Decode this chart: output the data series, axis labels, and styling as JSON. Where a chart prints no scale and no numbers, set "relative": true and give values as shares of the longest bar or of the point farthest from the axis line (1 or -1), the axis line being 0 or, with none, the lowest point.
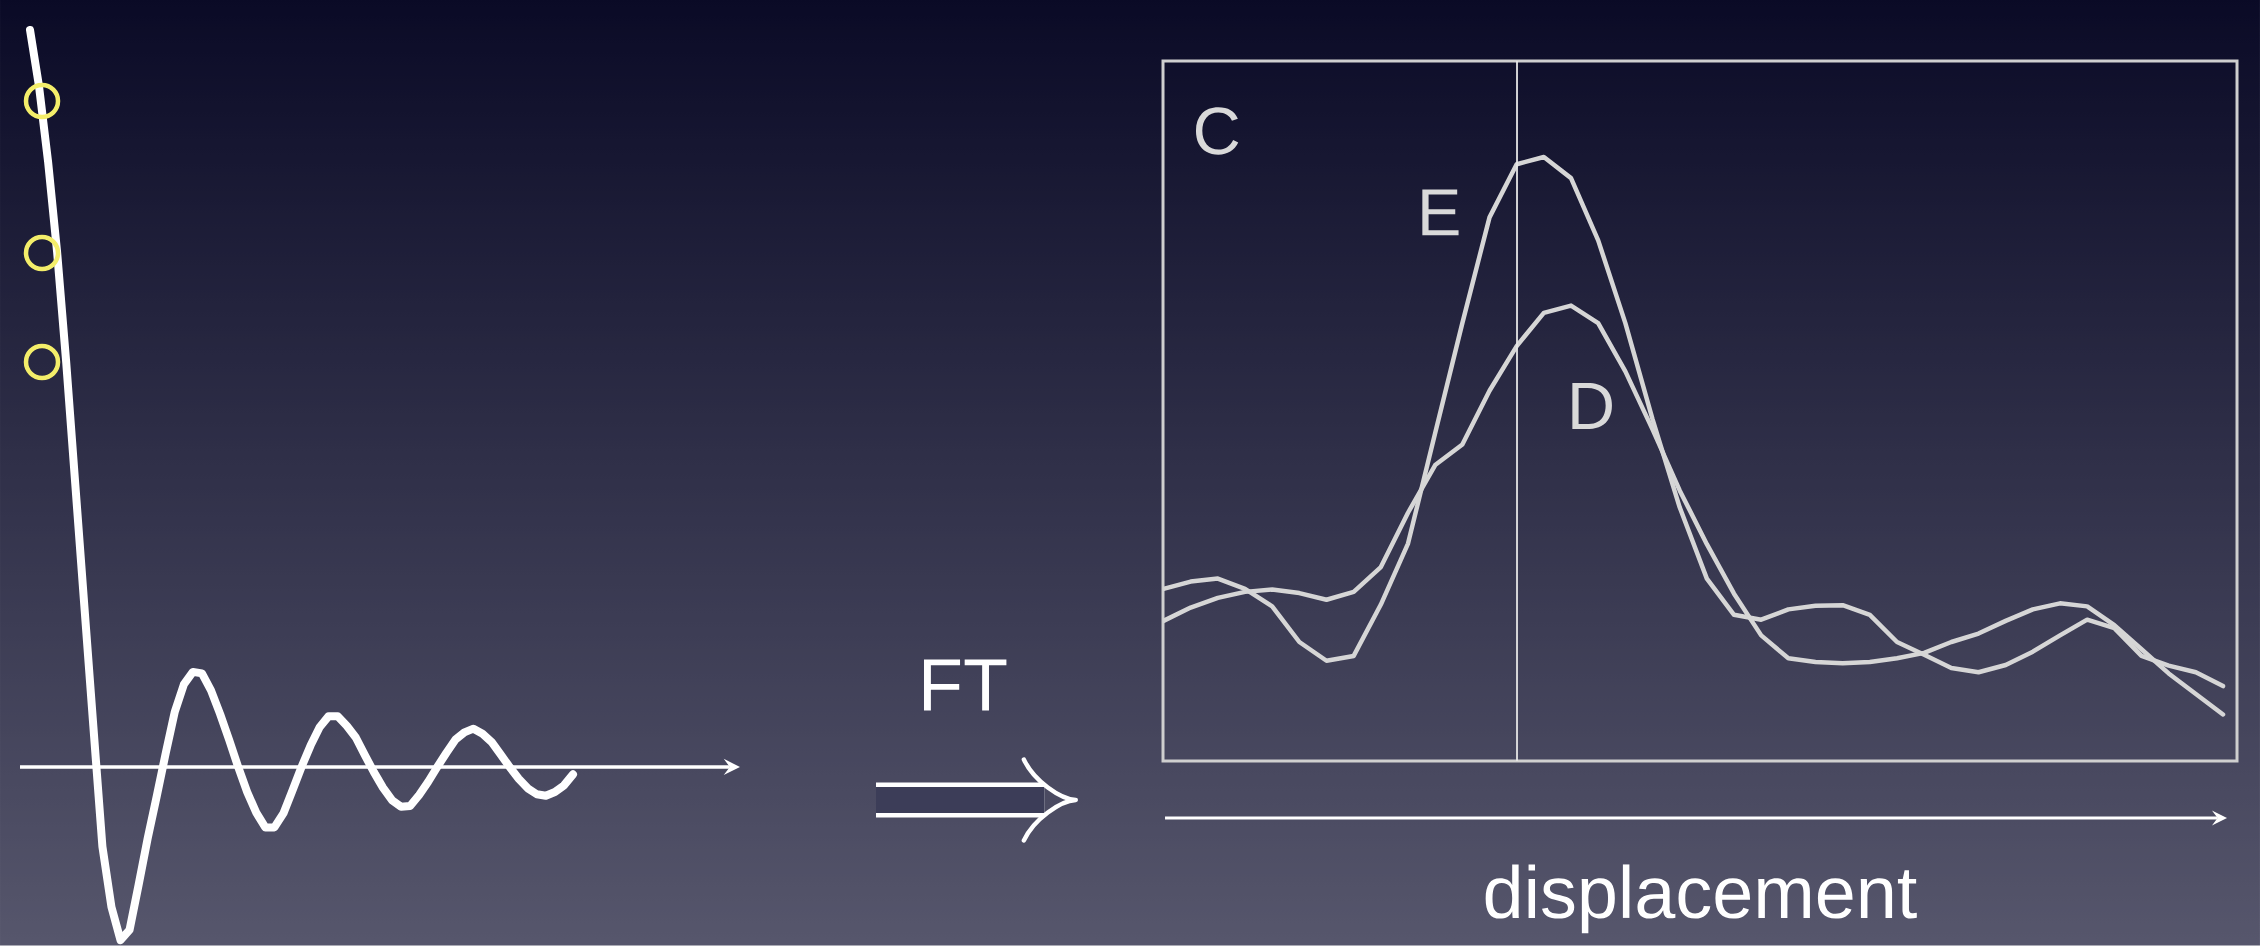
{
  "chart_data": [
    {
      "type": "line",
      "relative": true,
      "categories": [
        null,
        null,
        null,
        null,
        null,
        null,
        null,
        null,
        null,
        null,
        null,
        null,
        null,
        null,
        null,
        null,
        null,
        null,
        null,
        null,
        null,
        null,
        null,
        null,
        null,
        null,
        null,
        null,
        null,
        null,
        null,
        null,
        null,
        null,
        null,
        null,
        null,
        null,
        null,
        null,
        null,
        null,
        null,
        null,
        null,
        null,
        null,
        null,
        null,
        null,
        null,
        null,
        null,
        null,
        null,
        null,
        null,
        null,
        null,
        null,
        null
      ],
      "series": [
        {
          "color": "#ffffff",
          "values": [
            1.0,
            0.923,
            0.821,
            0.698,
            0.549,
            0.384,
            0.219,
            0.055,
            -0.108,
            -0.19,
            -0.235,
            -0.221,
            -0.16,
            -0.097,
            -0.04,
            0.019,
            0.075,
            0.112,
            0.129,
            0.127,
            0.104,
            0.072,
            0.037,
            0,
            -0.034,
            -0.062,
            -0.082,
            -0.082,
            -0.063,
            -0.032,
            0,
            0.029,
            0.054,
            0.069,
            0.069,
            0.056,
            0.04,
            0.016,
            -0.007,
            -0.028,
            -0.045,
            -0.054,
            -0.053,
            -0.038,
            -0.02,
            0,
            0.019,
            0.037,
            0.047,
            0.052,
            0.045,
            0.034,
            0.017,
            0,
            -0.016,
            -0.029,
            -0.037,
            -0.039,
            -0.034,
            -0.025,
            -0.01
          ]
        }
      ]
    },
    {
      "type": "line",
      "relative": true,
      "xlabel": "displacement",
      "annotations": [
        "C",
        "FT"
      ],
      "categories": [
        null,
        null,
        null,
        null,
        null,
        null,
        null,
        null,
        null,
        null,
        null,
        null,
        null,
        null,
        null,
        null,
        null,
        null,
        null,
        null,
        null,
        null,
        null,
        null,
        null,
        null,
        null,
        null,
        null,
        null,
        null,
        null,
        null,
        null,
        null,
        null,
        null,
        null,
        null,
        null
      ],
      "series": [
        {
          "name": "E",
          "color": "#d6d6d6",
          "values": [
            0.285,
            0.297,
            0.302,
            0.285,
            0.256,
            0.197,
            0.166,
            0.174,
            0.259,
            0.36,
            0.543,
            0.725,
            0.9,
            0.988,
            1.0,
            0.965,
            0.862,
            0.725,
            0.566,
            0.42,
            0.302,
            0.242,
            0.234,
            0.251,
            0.257,
            0.258,
            0.242,
            0.197,
            0.176,
            0.154,
            0.147,
            0.159,
            0.181,
            0.208,
            0.234,
            0.22,
            0.174,
            0.158,
            0.147,
            0.124
          ]
        },
        {
          "name": "D",
          "color": "#d6d6d6",
          "values": [
            0.232,
            0.254,
            0.27,
            0.28,
            0.284,
            0.278,
            0.267,
            0.28,
            0.321,
            0.411,
            0.49,
            0.524,
            0.613,
            0.687,
            0.742,
            0.754,
            0.725,
            0.645,
            0.549,
            0.448,
            0.359,
            0.277,
            0.208,
            0.17,
            0.164,
            0.162,
            0.164,
            0.17,
            0.179,
            0.197,
            0.211,
            0.232,
            0.251,
            0.261,
            0.256,
            0.225,
            0.185,
            0.145,
            0.111,
            0.077
          ]
        }
      ]
    }
  ]
}
